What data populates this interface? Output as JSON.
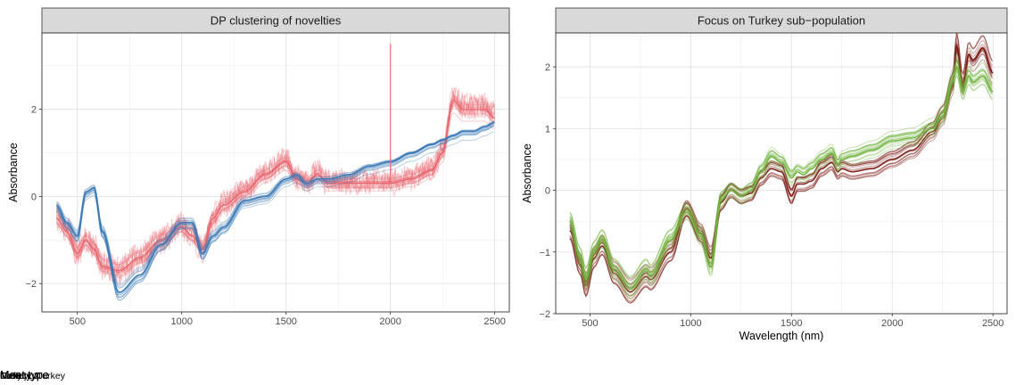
{
  "chart_data": [
    {
      "type": "line",
      "title": "DP clustering of novelties",
      "xlabel": "",
      "ylabel": "Absorbance",
      "xlim": [
        330,
        2570
      ],
      "ylim": [
        -2.65,
        3.75
      ],
      "xticks": [
        500,
        1000,
        1500,
        2000,
        2500
      ],
      "yticks": [
        -2,
        0,
        2
      ],
      "grid": true,
      "legend": {
        "title": "Meat type",
        "position": "bottom",
        "entries": [
          "Novelty 1",
          "Novelty 2"
        ]
      },
      "x": [
        400,
        450,
        500,
        540,
        580,
        620,
        700,
        800,
        900,
        1000,
        1050,
        1100,
        1150,
        1200,
        1300,
        1400,
        1500,
        1550,
        1600,
        1650,
        1700,
        1800,
        1900,
        2000,
        2100,
        2200,
        2250,
        2300,
        2350,
        2400,
        2450,
        2500
      ],
      "series": [
        {
          "name": "Novelty 1",
          "color": "#e8676f",
          "values": [
            -0.5,
            -0.8,
            -1.3,
            -1.0,
            -1.2,
            -1.6,
            -1.7,
            -1.4,
            -1.0,
            -0.7,
            -0.9,
            -1.2,
            -0.5,
            -0.2,
            0.1,
            0.5,
            0.8,
            0.4,
            0.3,
            0.5,
            0.3,
            0.3,
            0.3,
            0.3,
            0.4,
            0.6,
            1.0,
            2.2,
            2.0,
            2.0,
            2.0,
            1.8
          ]
        },
        {
          "name": "Novelty 2",
          "color": "#3a78b5",
          "values": [
            -0.2,
            -0.6,
            -0.9,
            0.1,
            0.2,
            -0.8,
            -2.2,
            -1.8,
            -1.1,
            -0.6,
            -0.6,
            -1.3,
            -0.9,
            -0.7,
            -0.1,
            0.0,
            0.4,
            0.5,
            0.3,
            0.4,
            0.4,
            0.5,
            0.7,
            0.8,
            1.0,
            1.2,
            1.3,
            1.4,
            1.5,
            1.5,
            1.6,
            1.7
          ]
        }
      ],
      "annotations": [
        {
          "type": "spike",
          "x": 2000,
          "y": 3.5,
          "series": "Novelty 1"
        }
      ]
    },
    {
      "type": "line",
      "title": "Focus on Turkey sub−population",
      "xlabel": "Wavelength (nm)",
      "ylabel": "Absorbance",
      "xlim": [
        330,
        2570
      ],
      "ylim": [
        -2,
        2.55
      ],
      "xticks": [
        500,
        1000,
        1500,
        2000,
        2500
      ],
      "yticks": [
        -2,
        -1,
        0,
        1,
        2
      ],
      "grid": true,
      "legend": {
        "title": "Meat type",
        "position": "bottom",
        "entries": [
          "Outlying Turkey",
          "Turkey"
        ]
      },
      "x": [
        400,
        450,
        480,
        520,
        560,
        620,
        700,
        780,
        800,
        900,
        980,
        1050,
        1100,
        1150,
        1200,
        1250,
        1300,
        1350,
        1400,
        1450,
        1500,
        1530,
        1560,
        1600,
        1650,
        1700,
        1730,
        1750,
        1800,
        1900,
        2000,
        2100,
        2200,
        2250,
        2300,
        2320,
        2350,
        2380,
        2400,
        2450,
        2500
      ],
      "series": [
        {
          "name": "Outlying Turkey",
          "color": "#7a1a14",
          "values": [
            -0.65,
            -1.2,
            -1.55,
            -1.1,
            -0.9,
            -1.35,
            -1.65,
            -1.4,
            -1.45,
            -1.0,
            -0.3,
            -0.7,
            -1.1,
            -0.2,
            0.0,
            -0.1,
            -0.05,
            0.2,
            0.35,
            0.3,
            -0.1,
            0.1,
            0.1,
            0.15,
            0.35,
            0.45,
            0.3,
            0.35,
            0.3,
            0.35,
            0.5,
            0.65,
            0.95,
            1.2,
            1.7,
            2.35,
            1.7,
            2.2,
            2.1,
            2.3,
            1.9
          ]
        },
        {
          "name": "Turkey",
          "color": "#72b33f",
          "values": [
            -0.5,
            -1.1,
            -1.45,
            -1.0,
            -0.8,
            -1.3,
            -1.6,
            -1.3,
            -1.4,
            -0.8,
            -0.35,
            -0.75,
            -1.25,
            -0.15,
            0.0,
            -0.1,
            0.0,
            0.3,
            0.55,
            0.45,
            0.2,
            0.3,
            0.25,
            0.35,
            0.5,
            0.6,
            0.4,
            0.5,
            0.55,
            0.65,
            0.8,
            0.85,
            1.0,
            1.2,
            1.75,
            2.0,
            1.6,
            1.85,
            1.75,
            1.85,
            1.6
          ]
        }
      ]
    }
  ]
}
